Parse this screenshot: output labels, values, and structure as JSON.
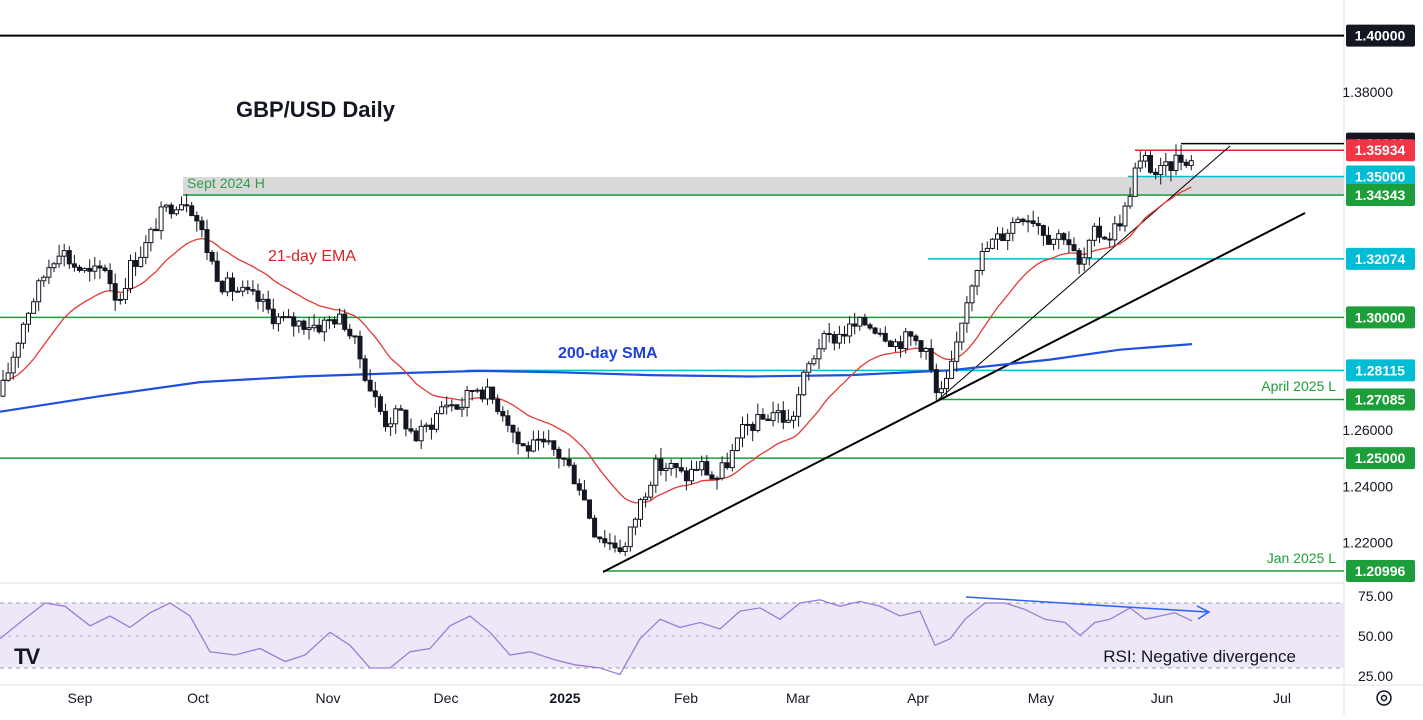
{
  "chart_data": {
    "type": "candlestick",
    "title": "GBP/USD Daily",
    "price_axis": {
      "ylim": [
        1.2,
        1.41
      ],
      "ticks": [
        "1.38000",
        "1.26000",
        "1.24000",
        "1.22000"
      ],
      "tick_values": [
        1.38,
        1.26,
        1.24,
        1.22
      ]
    },
    "x_axis": {
      "labels": [
        "Sep",
        "Oct",
        "Nov",
        "Dec",
        "2025",
        "Feb",
        "Mar",
        "Apr",
        "May",
        "Jun",
        "Jul"
      ]
    },
    "levels": [
      {
        "value": "1.40000",
        "price": 1.4,
        "color": "#000000",
        "label_bg": "#131722"
      },
      {
        "value": "1.36168",
        "price": 1.36168,
        "color": "#000000",
        "label_bg": "#131722"
      },
      {
        "value": "1.35934",
        "price": 1.35934,
        "color": "#e0262b",
        "label_bg": "#f23645"
      },
      {
        "value": "1.35000",
        "price": 1.35,
        "color": "#00bcd4",
        "label_bg": "#00bcd4"
      },
      {
        "value": "1.34343",
        "price": 1.34343,
        "color": "#1e9e3a",
        "label_bg": "#1e9e3a"
      },
      {
        "value": "1.32074",
        "price": 1.32074,
        "color": "#00bcd4",
        "label_bg": "#00bcd4"
      },
      {
        "value": "1.30000",
        "price": 1.3,
        "color": "#1e9e3a",
        "label_bg": "#1e9e3a"
      },
      {
        "value": "1.28115",
        "price": 1.28115,
        "color": "#00bcd4",
        "label_bg": "#00bcd4"
      },
      {
        "value": "1.27085",
        "price": 1.27085,
        "color": "#1e9e3a",
        "label_bg": "#1e9e3a"
      },
      {
        "value": "1.25000",
        "price": 1.25,
        "color": "#1e9e3a",
        "label_bg": "#1e9e3a"
      },
      {
        "value": "1.20996",
        "price": 1.20996,
        "color": "#1e9e3a",
        "label_bg": "#1e9e3a"
      }
    ],
    "annotations": {
      "sept_2024_h": "Sept 2024 H",
      "ema21": "21-day EMA",
      "sma200": "200-day SMA",
      "april_low": "April 2025 L",
      "jan_low": "Jan 2025 L",
      "rsi_note": "RSI: Negative divergence"
    },
    "rsi": {
      "ticks": [
        "75.00",
        "50.00",
        "25.00"
      ],
      "tick_values": [
        75,
        50,
        25
      ],
      "band": [
        30,
        70
      ]
    },
    "series": [
      {
        "name": "21-day EMA",
        "color": "#e53935"
      },
      {
        "name": "200-day SMA",
        "color": "#1f4fe0"
      },
      {
        "name": "RSI",
        "color": "#9b7fd6"
      }
    ]
  },
  "ui": {
    "logo_text": "TV",
    "settings_icon": "gear-icon"
  }
}
